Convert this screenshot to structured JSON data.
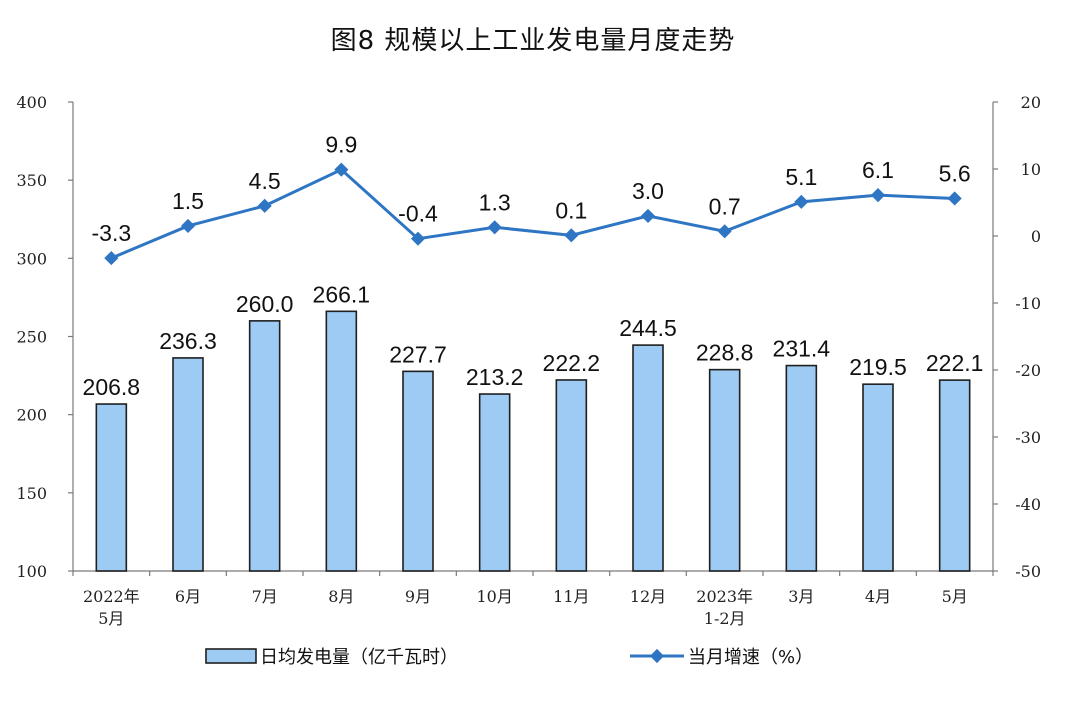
{
  "chart_data": {
    "type": "bar+line",
    "title": "图8  规模以上工业发电量月度走势",
    "categories": [
      [
        "2022年",
        "5月"
      ],
      [
        "6月"
      ],
      [
        "7月"
      ],
      [
        "8月"
      ],
      [
        "9月"
      ],
      [
        "10月"
      ],
      [
        "11月"
      ],
      [
        "12月"
      ],
      [
        "2023年",
        "1-2月"
      ],
      [
        "3月"
      ],
      [
        "4月"
      ],
      [
        "5月"
      ]
    ],
    "series": [
      {
        "name": "日均发电量（亿千瓦时）",
        "type": "bar",
        "axis": "left",
        "color": "#9dcbf3",
        "values": [
          206.8,
          236.3,
          260.0,
          266.1,
          227.7,
          213.2,
          222.2,
          244.5,
          228.8,
          231.4,
          219.5,
          222.1
        ],
        "labels": [
          "206.8",
          "236.3",
          "260.0",
          "266.1",
          "227.7",
          "213.2",
          "222.2",
          "244.5",
          "228.8",
          "231.4",
          "219.5",
          "222.1"
        ]
      },
      {
        "name": "当月增速（%）",
        "type": "line",
        "axis": "right",
        "color": "#2e76c4",
        "values": [
          -3.3,
          1.5,
          4.5,
          9.9,
          -0.4,
          1.3,
          0.1,
          3.0,
          0.7,
          5.1,
          6.1,
          5.6
        ],
        "labels": [
          "-3.3",
          "1.5",
          "4.5",
          "9.9",
          "-0.4",
          "1.3",
          "0.1",
          "3.0",
          "0.7",
          "5.1",
          "6.1",
          "5.6"
        ]
      }
    ],
    "y_left": {
      "ylim": [
        100,
        400
      ],
      "ticks": [
        "100",
        "150",
        "200",
        "250",
        "300",
        "350",
        "400"
      ]
    },
    "y_right": {
      "ylim": [
        -50,
        20
      ],
      "ticks": [
        "-50",
        "-40",
        "-30",
        "-20",
        "-10",
        "0",
        "10",
        "20"
      ]
    },
    "grid": false,
    "legend_position": "bottom"
  }
}
